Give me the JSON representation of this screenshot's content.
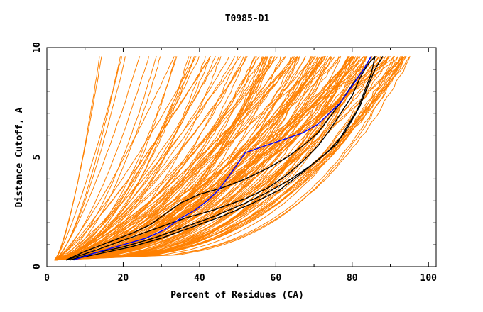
{
  "chart_data": {
    "type": "line",
    "title": "T0985-D1",
    "xlabel": "Percent of Residues (CA)",
    "ylabel": "Distance Cutoff, A",
    "xlim": [
      0,
      102
    ],
    "ylim": [
      0,
      10
    ],
    "x_ticks": [
      0,
      20,
      40,
      60,
      80,
      100
    ],
    "x_tick_labels": [
      "0",
      "20",
      "40",
      "60",
      "80",
      "100"
    ],
    "y_ticks": [
      0,
      5,
      10
    ],
    "y_tick_labels": [
      "0",
      "5",
      "10"
    ],
    "grid": false,
    "colors": {
      "background": "#ffffff",
      "others": "#ff8000",
      "highlight_black": "#000000",
      "highlight_blue": "#0000ff",
      "axis": "#000000"
    },
    "background_bundle": {
      "count": 150,
      "curve_shape": "power",
      "min_x": 2,
      "max_x_range": [
        6,
        96
      ],
      "y_start": 0.3,
      "y_end": 9.6
    },
    "series": [
      {
        "name": "black-1",
        "color": "#000000",
        "points": [
          [
            5,
            0.3
          ],
          [
            10,
            0.7
          ],
          [
            16,
            1.1
          ],
          [
            22,
            1.5
          ],
          [
            27,
            1.9
          ],
          [
            31,
            2.4
          ],
          [
            35,
            2.9
          ],
          [
            40,
            3.3
          ],
          [
            46,
            3.6
          ],
          [
            52,
            4.0
          ],
          [
            58,
            4.5
          ],
          [
            63,
            5.0
          ],
          [
            67,
            5.5
          ],
          [
            71,
            6.1
          ],
          [
            74,
            6.8
          ],
          [
            77,
            7.5
          ],
          [
            80,
            8.3
          ],
          [
            83,
            9.0
          ],
          [
            85,
            9.6
          ]
        ]
      },
      {
        "name": "black-2",
        "color": "#000000",
        "points": [
          [
            5,
            0.3
          ],
          [
            12,
            0.7
          ],
          [
            20,
            1.2
          ],
          [
            28,
            1.7
          ],
          [
            36,
            2.2
          ],
          [
            44,
            2.6
          ],
          [
            52,
            3.1
          ],
          [
            58,
            3.6
          ],
          [
            63,
            4.2
          ],
          [
            67,
            4.8
          ],
          [
            71,
            5.5
          ],
          [
            74,
            6.2
          ],
          [
            77,
            7.0
          ],
          [
            80,
            7.8
          ],
          [
            82,
            8.6
          ],
          [
            84,
            9.2
          ],
          [
            86,
            9.6
          ]
        ]
      },
      {
        "name": "black-3",
        "color": "#000000",
        "points": [
          [
            6,
            0.3
          ],
          [
            12,
            0.6
          ],
          [
            20,
            0.9
          ],
          [
            28,
            1.3
          ],
          [
            36,
            1.8
          ],
          [
            44,
            2.3
          ],
          [
            52,
            2.9
          ],
          [
            58,
            3.4
          ],
          [
            64,
            4.0
          ],
          [
            69,
            4.6
          ],
          [
            74,
            5.3
          ],
          [
            78,
            6.1
          ],
          [
            81,
            7.0
          ],
          [
            83,
            7.9
          ],
          [
            85,
            8.8
          ],
          [
            86,
            9.6
          ]
        ]
      },
      {
        "name": "black-4",
        "color": "#000000",
        "points": [
          [
            6,
            0.3
          ],
          [
            14,
            0.6
          ],
          [
            22,
            0.9
          ],
          [
            30,
            1.3
          ],
          [
            38,
            1.8
          ],
          [
            46,
            2.3
          ],
          [
            54,
            2.9
          ],
          [
            61,
            3.5
          ],
          [
            67,
            4.3
          ],
          [
            72,
            5.0
          ],
          [
            76,
            5.6
          ],
          [
            79,
            6.5
          ],
          [
            82,
            7.3
          ],
          [
            84,
            8.2
          ],
          [
            86,
            9.0
          ],
          [
            88,
            9.6
          ]
        ]
      },
      {
        "name": "blue",
        "color": "#0000ff",
        "points": [
          [
            7,
            0.3
          ],
          [
            14,
            0.7
          ],
          [
            20,
            1.0
          ],
          [
            26,
            1.3
          ],
          [
            31,
            1.7
          ],
          [
            35,
            2.2
          ],
          [
            39,
            2.6
          ],
          [
            42,
            3.0
          ],
          [
            45,
            3.5
          ],
          [
            48,
            4.2
          ],
          [
            50,
            4.7
          ],
          [
            52,
            5.2
          ],
          [
            57,
            5.5
          ],
          [
            62,
            5.8
          ],
          [
            67,
            6.1
          ],
          [
            71,
            6.5
          ],
          [
            74,
            7.0
          ],
          [
            77,
            7.5
          ],
          [
            79,
            8.0
          ],
          [
            81,
            8.5
          ],
          [
            83,
            9.0
          ],
          [
            85,
            9.6
          ]
        ]
      }
    ]
  }
}
